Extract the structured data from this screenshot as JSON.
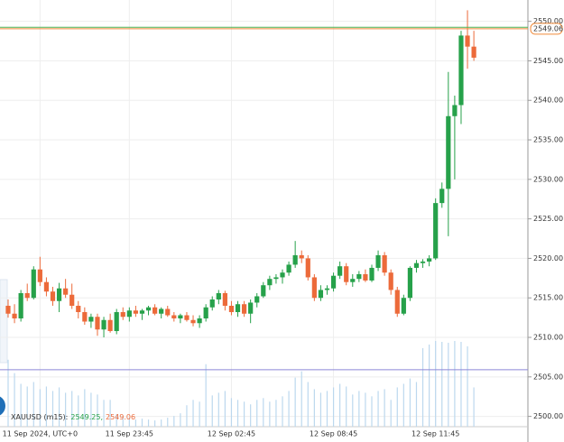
{
  "chart_data": {
    "type": "candlestick",
    "legend": {
      "label": "XAUUSD (m15):",
      "values": [
        "2549.25,",
        "2549.06"
      ]
    },
    "categories": [
      null,
      null,
      null,
      null,
      null,
      "11 Sep 2024, UTC+0",
      null,
      null,
      null,
      null,
      null,
      null,
      null,
      null,
      null,
      null,
      null,
      null,
      null,
      "11 Sep 23:45",
      null,
      null,
      null,
      null,
      null,
      null,
      null,
      null,
      null,
      null,
      null,
      null,
      null,
      null,
      null,
      "12 Sep 02:45",
      null,
      null,
      null,
      null,
      null,
      null,
      null,
      null,
      null,
      null,
      null,
      null,
      null,
      null,
      null,
      "12 Sep 08:45",
      null,
      null,
      null,
      null,
      null,
      null,
      null,
      null,
      null,
      null,
      null,
      null,
      null,
      null,
      null,
      "12 Sep 11:45",
      null,
      null,
      null,
      null,
      null,
      null
    ],
    "open": [
      2514.0,
      2513.0,
      2512.4,
      2515.6,
      2515.0,
      2518.6,
      2517.0,
      2515.8,
      2514.6,
      2516.2,
      2515.4,
      2514.0,
      2513.2,
      2512.0,
      2512.6,
      2511.0,
      2512.2,
      2510.8,
      2513.2,
      2512.6,
      2513.4,
      2513.0,
      2513.4,
      2513.8,
      2513.0,
      2513.6,
      2512.8,
      2512.4,
      2512.8,
      2512.2,
      2511.8,
      2512.4,
      2513.8,
      2514.8,
      2515.6,
      2514.0,
      2513.2,
      2514.2,
      2513.0,
      2514.4,
      2515.2,
      2516.6,
      2517.4,
      2517.6,
      2518.2,
      2519.2,
      2520.4,
      2520.0,
      2517.6,
      2515.0,
      2516.0,
      2516.2,
      2517.8,
      2519.0,
      2517.0,
      2517.4,
      2518.0,
      2517.2,
      2518.8,
      2520.4,
      2518.2,
      2516.0,
      2513.0,
      2515.0,
      2518.8,
      2519.4,
      2519.6,
      2520.0,
      2527.0,
      2528.8,
      2538.0,
      2539.4,
      2548.2,
      2546.8
    ],
    "high": [
      2514.8,
      2514.2,
      2516.0,
      2516.8,
      2519.0,
      2520.2,
      2517.6,
      2516.4,
      2516.9,
      2517.4,
      2516.8,
      2514.6,
      2513.8,
      2513.0,
      2513.0,
      2512.6,
      2513.0,
      2513.6,
      2513.8,
      2513.8,
      2514.0,
      2513.6,
      2514.0,
      2514.2,
      2513.8,
      2514.0,
      2513.2,
      2513.0,
      2513.2,
      2512.8,
      2512.8,
      2514.2,
      2515.2,
      2516.0,
      2515.9,
      2514.6,
      2514.6,
      2514.6,
      2514.8,
      2515.6,
      2517.0,
      2517.8,
      2518.0,
      2518.6,
      2519.6,
      2522.2,
      2521.0,
      2520.4,
      2518.0,
      2516.6,
      2516.6,
      2518.2,
      2519.6,
      2519.4,
      2518.0,
      2518.4,
      2518.6,
      2519.2,
      2521.0,
      2520.8,
      2518.6,
      2516.4,
      2515.4,
      2519.0,
      2519.8,
      2519.9,
      2520.4,
      2527.6,
      2529.6,
      2543.6,
      2540.6,
      2548.8,
      2551.4,
      2548.8
    ],
    "low": [
      2512.5,
      2511.8,
      2512.0,
      2514.6,
      2514.8,
      2516.5,
      2515.2,
      2514.0,
      2513.2,
      2515.0,
      2513.6,
      2512.4,
      2511.6,
      2511.2,
      2510.2,
      2510.0,
      2510.6,
      2510.4,
      2512.2,
      2512.0,
      2512.6,
      2512.2,
      2512.8,
      2512.8,
      2512.4,
      2512.6,
      2512.0,
      2511.8,
      2512.0,
      2511.4,
      2511.2,
      2512.0,
      2513.4,
      2514.2,
      2513.4,
      2512.8,
      2512.6,
      2512.6,
      2511.8,
      2513.8,
      2515.0,
      2516.0,
      2516.8,
      2516.8,
      2517.8,
      2518.8,
      2519.4,
      2517.2,
      2514.6,
      2514.6,
      2515.4,
      2515.8,
      2517.4,
      2516.6,
      2516.4,
      2517.0,
      2517.0,
      2517.0,
      2518.4,
      2517.8,
      2515.4,
      2512.6,
      2512.8,
      2514.6,
      2518.2,
      2518.8,
      2519.0,
      2519.8,
      2526.4,
      2522.8,
      2530.0,
      2537.0,
      2544.0,
      2545.0
    ],
    "close": [
      2513.0,
      2512.4,
      2515.6,
      2515.0,
      2518.6,
      2517.0,
      2515.8,
      2514.6,
      2516.2,
      2515.4,
      2514.0,
      2513.2,
      2512.0,
      2512.6,
      2511.0,
      2512.2,
      2510.8,
      2513.2,
      2512.6,
      2513.4,
      2513.0,
      2513.4,
      2513.8,
      2513.0,
      2513.6,
      2512.8,
      2512.4,
      2512.8,
      2512.2,
      2511.8,
      2512.4,
      2513.8,
      2514.8,
      2515.6,
      2514.0,
      2513.2,
      2514.2,
      2513.0,
      2514.4,
      2515.2,
      2516.6,
      2517.4,
      2517.6,
      2518.2,
      2519.2,
      2520.4,
      2520.0,
      2517.6,
      2515.0,
      2516.0,
      2516.2,
      2517.8,
      2519.0,
      2517.0,
      2517.4,
      2518.0,
      2517.2,
      2518.8,
      2520.4,
      2518.2,
      2516.0,
      2513.0,
      2515.0,
      2518.8,
      2519.4,
      2519.6,
      2520.0,
      2527.0,
      2528.8,
      2538.0,
      2539.4,
      2548.2,
      2546.8,
      2545.4
    ],
    "volume": [
      75,
      60,
      48,
      45,
      50,
      42,
      45,
      40,
      44,
      38,
      40,
      35,
      42,
      38,
      36,
      30,
      30,
      14,
      12,
      10,
      8,
      9,
      8,
      7,
      8,
      10,
      12,
      15,
      24,
      30,
      28,
      70,
      35,
      38,
      40,
      32,
      30,
      28,
      25,
      30,
      32,
      28,
      30,
      34,
      40,
      55,
      62,
      50,
      42,
      38,
      40,
      44,
      48,
      45,
      36,
      40,
      38,
      34,
      40,
      42,
      30,
      44,
      48,
      54,
      50,
      88,
      92,
      96,
      95,
      94,
      96,
      95,
      90,
      44
    ],
    "up_color": "#26a14a",
    "down_color": "#ec6a3a",
    "volume_color": "#bcd8ee",
    "ylim": [
      2498.7,
      2552.7
    ],
    "yticks": [
      {
        "value": 2500,
        "label": "2500.00"
      },
      {
        "value": 2505,
        "label": "2505.00"
      },
      {
        "value": 2510,
        "label": "2510.00"
      },
      {
        "value": 2515,
        "label": "2515.00"
      },
      {
        "value": 2520,
        "label": "2520.00"
      },
      {
        "value": 2525,
        "label": "2525.00"
      },
      {
        "value": 2530,
        "label": "2530.00"
      },
      {
        "value": 2535,
        "label": "2535.00"
      },
      {
        "value": 2540,
        "label": "2540.00"
      },
      {
        "value": 2545,
        "label": "2545.00"
      },
      {
        "value": 2550,
        "label": "2550.00"
      }
    ],
    "price_lines": [
      {
        "value": 2549.25,
        "color": "#4caf50"
      },
      {
        "value": 2549.06,
        "color": "#f08a3a",
        "label": "2549.06"
      }
    ],
    "reference_line": {
      "value": 2505.9,
      "color": "#8c86d8"
    },
    "grid": true
  }
}
